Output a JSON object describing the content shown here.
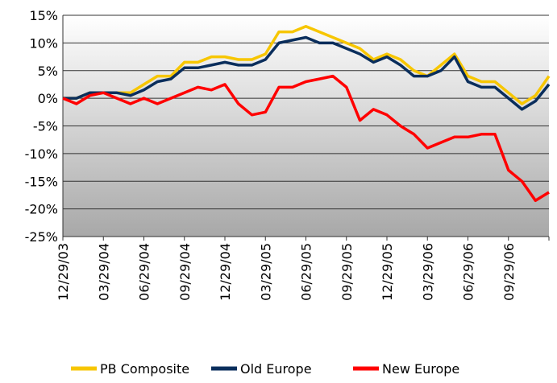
{
  "chart_data": {
    "type": "line",
    "x": [
      "12/29/03",
      "01/29/04",
      "02/29/04",
      "03/29/04",
      "04/29/04",
      "05/29/04",
      "06/29/04",
      "07/29/04",
      "08/29/04",
      "09/29/04",
      "10/29/04",
      "11/29/04",
      "12/29/04",
      "01/29/05",
      "02/28/05",
      "03/29/05",
      "04/29/05",
      "05/29/05",
      "06/29/05",
      "07/29/05",
      "08/29/05",
      "09/29/05",
      "10/29/05",
      "11/29/05",
      "12/29/05",
      "01/29/06",
      "02/28/06",
      "03/29/06",
      "04/29/06",
      "05/29/06",
      "06/29/06",
      "07/29/06",
      "08/29/06",
      "09/29/06",
      "10/29/06",
      "11/29/06",
      "12/29/06"
    ],
    "xticks": [
      "12/29/03",
      "03/29/04",
      "06/29/04",
      "09/29/04",
      "12/29/04",
      "03/29/05",
      "06/29/05",
      "09/29/05",
      "12/29/05",
      "03/29/06",
      "06/29/06",
      "09/29/06"
    ],
    "series": [
      {
        "name": "PB Composite",
        "color": "#f7c600",
        "values": [
          0,
          0,
          1,
          1,
          1,
          1,
          2.5,
          4,
          4,
          6.5,
          6.5,
          7.5,
          7.5,
          7,
          7,
          8,
          12,
          12,
          13,
          12,
          11,
          10,
          9,
          7,
          8,
          7,
          5,
          4,
          6,
          8,
          4,
          3,
          3,
          1,
          -1,
          0.5,
          4
        ]
      },
      {
        "name": "Old Europe",
        "color": "#0a2e5c",
        "values": [
          0,
          0,
          1,
          1,
          1,
          0.5,
          1.5,
          3,
          3.5,
          5.5,
          5.5,
          6,
          6.5,
          6,
          6,
          7,
          10,
          10.5,
          11,
          10,
          10,
          9,
          8,
          6.5,
          7.5,
          6,
          4,
          4,
          5,
          7.5,
          3,
          2,
          2,
          0,
          -2,
          -0.5,
          2.5
        ]
      },
      {
        "name": "New Europe",
        "color": "#ff0000",
        "values": [
          0,
          -1,
          0.5,
          1,
          0,
          -1,
          0,
          -1,
          0,
          1,
          2,
          1.5,
          2.5,
          -1,
          -3,
          -2.5,
          2,
          2,
          3,
          3.5,
          4,
          2,
          -4,
          -2,
          -3,
          -5,
          -6.5,
          -9,
          -8,
          -7,
          -7,
          -6.5,
          -6.5,
          -13,
          -15,
          -18.5,
          -17
        ]
      }
    ],
    "ylim": [
      -25,
      15
    ],
    "yticks": [
      {
        "value": -25,
        "label": "-25%"
      },
      {
        "value": -20,
        "label": "-20%"
      },
      {
        "value": -15,
        "label": "-15%"
      },
      {
        "value": -10,
        "label": "-10%"
      },
      {
        "value": -5,
        "label": "-5%"
      },
      {
        "value": 0,
        "label": "0%"
      },
      {
        "value": 5,
        "label": "5%"
      },
      {
        "value": 10,
        "label": "10%"
      },
      {
        "value": 15,
        "label": "15%"
      }
    ],
    "grid": true
  }
}
